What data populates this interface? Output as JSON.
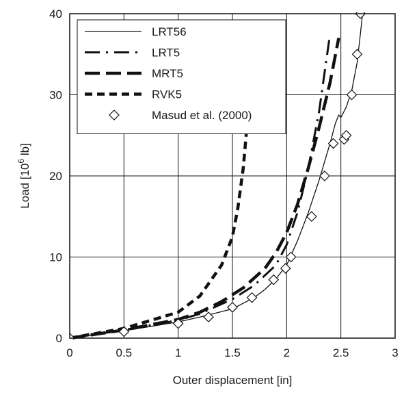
{
  "chart_data": {
    "type": "line",
    "title": "",
    "xlabel": "Outer displacement [in]",
    "ylabel_main": "Load [10",
    "ylabel_sup": "6",
    "ylabel_end": " lb]",
    "xlim": [
      0,
      3
    ],
    "ylim": [
      0,
      40
    ],
    "xticks": [
      0,
      0.5,
      1,
      1.5,
      2,
      2.5,
      3
    ],
    "xtick_labels": [
      "0",
      "0.5",
      "1",
      "1.5",
      "2",
      "2.5",
      "3"
    ],
    "yticks": [
      0,
      10,
      20,
      30,
      40
    ],
    "ytick_labels": [
      "0",
      "10",
      "20",
      "30",
      "40"
    ],
    "grid": true,
    "legend_position": "top-left",
    "series": [
      {
        "name": "LRT56",
        "style": "solid-thin",
        "x": [
          0,
          0.5,
          1,
          1.2,
          1.5,
          1.7,
          1.8,
          1.9,
          2.0,
          2.1,
          2.2,
          2.3,
          2.4,
          2.45,
          2.48,
          2.5,
          2.55,
          2.6,
          2.65,
          2.68,
          2.7
        ],
        "y": [
          0,
          0.9,
          2.0,
          2.6,
          3.6,
          5.0,
          6.0,
          7.3,
          9.0,
          12.0,
          15.5,
          19.5,
          24.0,
          26.5,
          27.5,
          27.2,
          28.5,
          30.5,
          34.0,
          37.5,
          40.0
        ]
      },
      {
        "name": "LRT5",
        "style": "dash-dot",
        "x": [
          0,
          0.5,
          1.0,
          1.2,
          1.5,
          1.7,
          1.9,
          2.0,
          2.1,
          2.2,
          2.3,
          2.4
        ],
        "y": [
          0,
          1.0,
          2.2,
          3.0,
          4.8,
          6.5,
          9.0,
          11.5,
          15.5,
          21.0,
          28.0,
          37.5
        ]
      },
      {
        "name": "MRT5",
        "style": "long-dash",
        "x": [
          0,
          0.5,
          1.0,
          1.2,
          1.4,
          1.6,
          1.8,
          1.9,
          2.0,
          2.1,
          2.2,
          2.3,
          2.4,
          2.48
        ],
        "y": [
          0,
          1.0,
          2.3,
          3.2,
          4.5,
          6.2,
          8.6,
          10.5,
          13.0,
          16.5,
          21.0,
          26.0,
          31.5,
          37.0
        ]
      },
      {
        "name": "RVK5",
        "style": "short-dash",
        "x": [
          0,
          0.5,
          1.0,
          1.2,
          1.4,
          1.5,
          1.55,
          1.6,
          1.63,
          1.66
        ],
        "y": [
          0,
          1.2,
          3.2,
          5.2,
          9.0,
          12.5,
          16.0,
          21.0,
          25.5,
          30.0
        ]
      },
      {
        "name": "Masud et al. (2000)",
        "style": "diamond-markers",
        "x": [
          0,
          0.5,
          1.0,
          1.28,
          1.5,
          1.68,
          1.88,
          1.99,
          2.04,
          2.23,
          2.35,
          2.43,
          2.53,
          2.55,
          2.6,
          2.65,
          2.68
        ],
        "y": [
          0,
          0.8,
          1.8,
          2.6,
          3.8,
          5.0,
          7.2,
          8.6,
          10.0,
          15.0,
          20.0,
          24.0,
          24.5,
          25.0,
          30.0,
          35.0,
          40.0
        ]
      }
    ]
  }
}
